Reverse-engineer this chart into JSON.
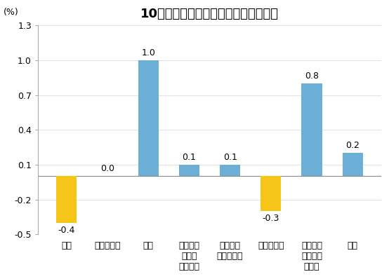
{
  "title": "10月份居民消费价格分类别环比涨跌幅",
  "ylabel": "(%)",
  "categories": [
    "食品",
    "烟酒及用品",
    "衣着",
    "家庭设备\n用品及\n维修服务",
    "医疗保健\n和个人用品",
    "交通和通信",
    "娱乐教育\n文化用品\n及服务",
    "居住"
  ],
  "values": [
    -0.4,
    0.0,
    1.0,
    0.1,
    0.1,
    -0.3,
    0.8,
    0.2
  ],
  "bar_colors": [
    "#F5C518",
    "#6BAED6",
    "#6BAED6",
    "#6BAED6",
    "#6BAED6",
    "#F5C518",
    "#6BAED6",
    "#6BAED6"
  ],
  "ylim": [
    -0.5,
    1.3
  ],
  "yticks": [
    -0.5,
    -0.2,
    0.1,
    0.4,
    0.7,
    1.0,
    1.3
  ],
  "background_color": "#FFFFFF",
  "plot_bg_color": "#FFFFFF",
  "title_fontsize": 13,
  "label_fontsize": 9,
  "tick_fontsize": 9,
  "value_fontsize": 9
}
